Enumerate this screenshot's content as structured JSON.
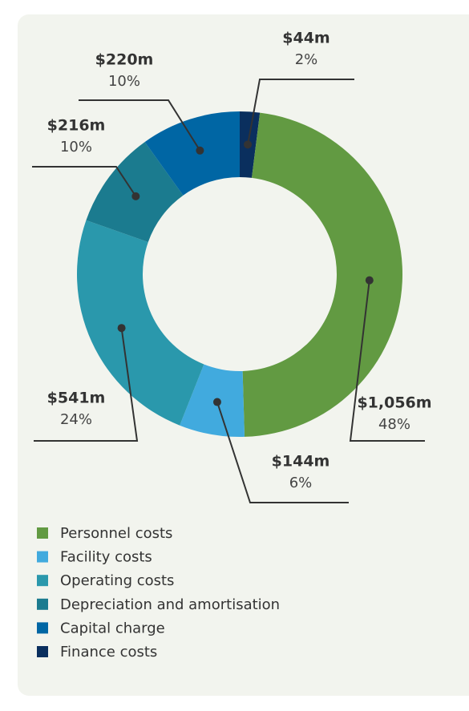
{
  "chart_data": {
    "type": "donut",
    "categories": [
      "Personnel costs",
      "Facility costs",
      "Operating costs",
      "Depreciation and amortisation",
      "Capital charge",
      "Finance costs"
    ],
    "values": [
      1056,
      144,
      541,
      216,
      220,
      44
    ],
    "value_labels": [
      "$1,056m",
      "$144m",
      "$541m",
      "$216m",
      "$220m",
      "$44m"
    ],
    "percents": [
      48,
      6,
      24,
      10,
      10,
      2
    ],
    "percent_labels": [
      "48%",
      "6%",
      "24%",
      "10%",
      "10%",
      "2%"
    ],
    "colors": [
      "#629a42",
      "#41aade",
      "#2a98ac",
      "#1b7b8f",
      "#0066a4",
      "#0a2f5e"
    ],
    "legend": "bottom"
  }
}
